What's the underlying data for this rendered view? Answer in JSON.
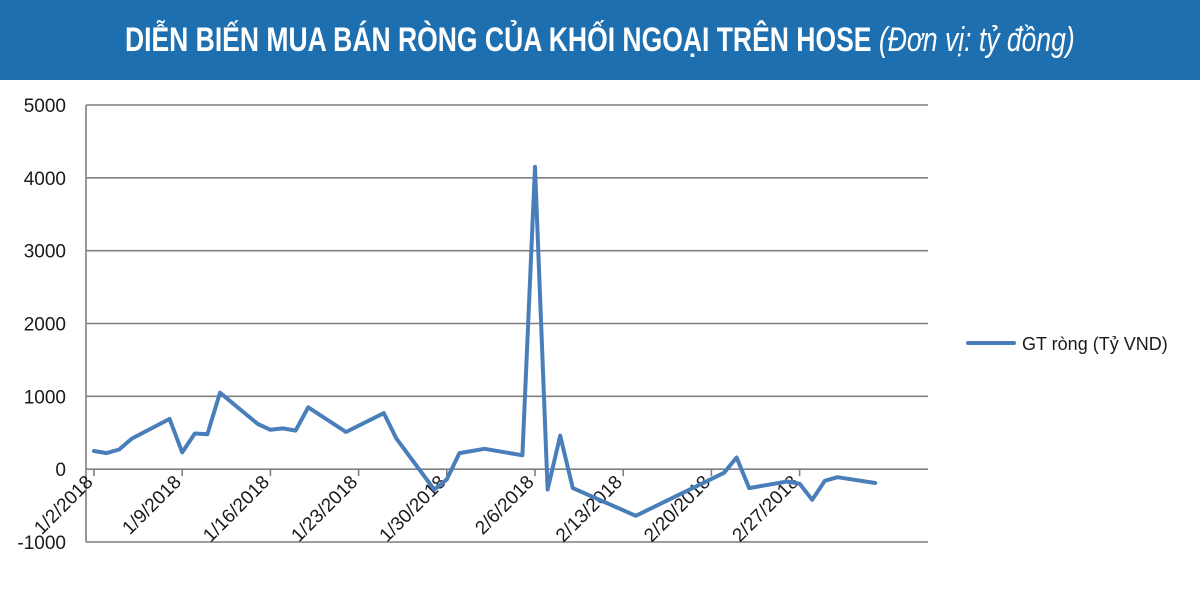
{
  "header": {
    "title": "DIỄN BIẾN MUA BÁN RÒNG CỦA KHỐI NGOẠI TRÊN HOSE",
    "unit": "(Đơn vị: tỷ đồng)"
  },
  "colors": {
    "banner": "#1e6fb0",
    "series": "#4a7ebb",
    "grid": "#7f7f7f",
    "text": "#1a1a1a"
  },
  "chart_data": {
    "type": "line",
    "title": "DIỄN BIẾN MUA BÁN RÒNG CỦA KHỐI NGOẠI TRÊN HOSE",
    "ylim": [
      -1000,
      5000
    ],
    "y_ticks": [
      -1000,
      0,
      1000,
      2000,
      3000,
      4000,
      5000
    ],
    "x_tick_labels": [
      "1/2/2018",
      "1/9/2018",
      "1/16/2018",
      "1/23/2018",
      "1/30/2018",
      "2/6/2018",
      "2/13/2018",
      "2/20/2018",
      "2/27/2018"
    ],
    "grid": true,
    "legend_position": "right",
    "series": [
      {
        "name": "GT ròng (Tỷ VND)",
        "points": [
          [
            "2018-01-02",
            250
          ],
          [
            "2018-01-03",
            220
          ],
          [
            "2018-01-04",
            270
          ],
          [
            "2018-01-05",
            420
          ],
          [
            "2018-01-08",
            690
          ],
          [
            "2018-01-09",
            230
          ],
          [
            "2018-01-10",
            490
          ],
          [
            "2018-01-11",
            480
          ],
          [
            "2018-01-12",
            1050
          ],
          [
            "2018-01-15",
            620
          ],
          [
            "2018-01-16",
            540
          ],
          [
            "2018-01-17",
            560
          ],
          [
            "2018-01-18",
            530
          ],
          [
            "2018-01-19",
            850
          ],
          [
            "2018-01-22",
            510
          ],
          [
            "2018-01-25",
            770
          ],
          [
            "2018-01-26",
            420
          ],
          [
            "2018-01-29",
            -280
          ],
          [
            "2018-01-30",
            -140
          ],
          [
            "2018-01-31",
            220
          ],
          [
            "2018-02-02",
            280
          ],
          [
            "2018-02-05",
            190
          ],
          [
            "2018-02-06",
            4150
          ],
          [
            "2018-02-07",
            -280
          ],
          [
            "2018-02-08",
            460
          ],
          [
            "2018-02-09",
            -260
          ],
          [
            "2018-02-14",
            -640
          ],
          [
            "2018-02-21",
            -50
          ],
          [
            "2018-02-22",
            160
          ],
          [
            "2018-02-23",
            -260
          ],
          [
            "2018-02-26",
            -170
          ],
          [
            "2018-02-27",
            -200
          ],
          [
            "2018-02-28",
            -420
          ],
          [
            "2018-03-01",
            -160
          ],
          [
            "2018-03-02",
            -110
          ],
          [
            "2018-03-05",
            -190
          ]
        ]
      }
    ]
  }
}
